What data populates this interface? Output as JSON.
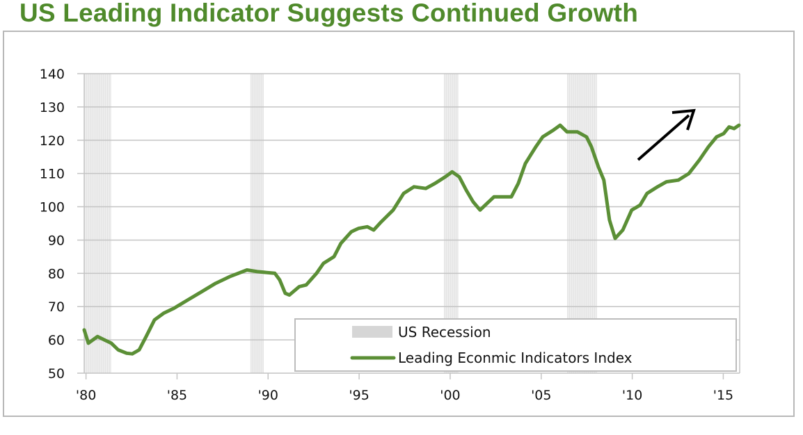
{
  "title": "US Leading Indicator Suggests Continued Growth",
  "chart_data": {
    "type": "line",
    "title": "US Leading Indicator Suggests Continued Growth",
    "xlabel": "",
    "ylabel": "",
    "xlim": [
      1979.9,
      2015.9
    ],
    "ylim": [
      50,
      140
    ],
    "grid": true,
    "legend_position": "bottom-right",
    "y_ticks": [
      50,
      60,
      70,
      80,
      90,
      100,
      110,
      120,
      130,
      140
    ],
    "x_ticks": [
      {
        "value": 1980,
        "label": "'80"
      },
      {
        "value": 1985,
        "label": "'85"
      },
      {
        "value": 1990,
        "label": "'90"
      },
      {
        "value": 1995,
        "label": "'95"
      },
      {
        "value": 2000,
        "label": "'00"
      },
      {
        "value": 2005,
        "label": "'05"
      },
      {
        "value": 2010,
        "label": "'10"
      },
      {
        "value": 2015,
        "label": "'15"
      }
    ],
    "legend": [
      "US Recession",
      "Leading Econmic Indicators Index"
    ],
    "recessions": [
      [
        1979.9,
        1981.39
      ],
      [
        1989.03,
        1989.76
      ],
      [
        1999.66,
        2000.46
      ],
      [
        2006.42,
        2008.06
      ]
    ],
    "series": [
      {
        "name": "Leading Econmic Indicators Index",
        "color": "#5b8f36",
        "x": [
          1979.9,
          1980.13,
          1980.63,
          1981.01,
          1981.39,
          1981.77,
          1982.23,
          1982.54,
          1982.92,
          1983.3,
          1983.76,
          1984.26,
          1984.83,
          1985.59,
          1986.36,
          1987.12,
          1987.89,
          1988.84,
          1989.41,
          1990.37,
          1990.64,
          1990.94,
          1991.17,
          1991.71,
          1992.09,
          1992.66,
          1993.04,
          1993.62,
          1994.0,
          1994.57,
          1994.96,
          1995.45,
          1995.8,
          1996.22,
          1996.87,
          1997.44,
          1998.01,
          1998.66,
          1999.16,
          1999.73,
          2000.11,
          2000.5,
          2000.88,
          2001.26,
          2001.64,
          2002.02,
          2002.41,
          2002.98,
          2003.36,
          2003.74,
          2004.13,
          2004.7,
          2005.08,
          2005.66,
          2006.04,
          2006.42,
          2006.99,
          2007.49,
          2007.76,
          2008.14,
          2008.44,
          2008.75,
          2009.06,
          2009.48,
          2009.97,
          2010.43,
          2010.81,
          2011.39,
          2011.88,
          2012.53,
          2013.11,
          2013.68,
          2014.18,
          2014.63,
          2015.02,
          2015.32,
          2015.59,
          2015.86
        ],
        "y": [
          63,
          59,
          61,
          60,
          59,
          57,
          56,
          55.8,
          57,
          61,
          66,
          68,
          69.5,
          72,
          74.5,
          77,
          79,
          81,
          80.5,
          80,
          78,
          74,
          73.5,
          76,
          76.5,
          80,
          83,
          85,
          89,
          92.5,
          93.5,
          94,
          93,
          95.5,
          99,
          104,
          106,
          105.5,
          107,
          109,
          110.5,
          109,
          105,
          101.5,
          99,
          101,
          103,
          103,
          103,
          107,
          113,
          118,
          121,
          123,
          124.5,
          122.5,
          122.5,
          121,
          118,
          112,
          108,
          96,
          90.5,
          93,
          99,
          100.5,
          104,
          106,
          107.5,
          108,
          110,
          114,
          118,
          121,
          122,
          124,
          123.5,
          124.5
        ]
      }
    ],
    "annotation": "upward-arrow"
  }
}
